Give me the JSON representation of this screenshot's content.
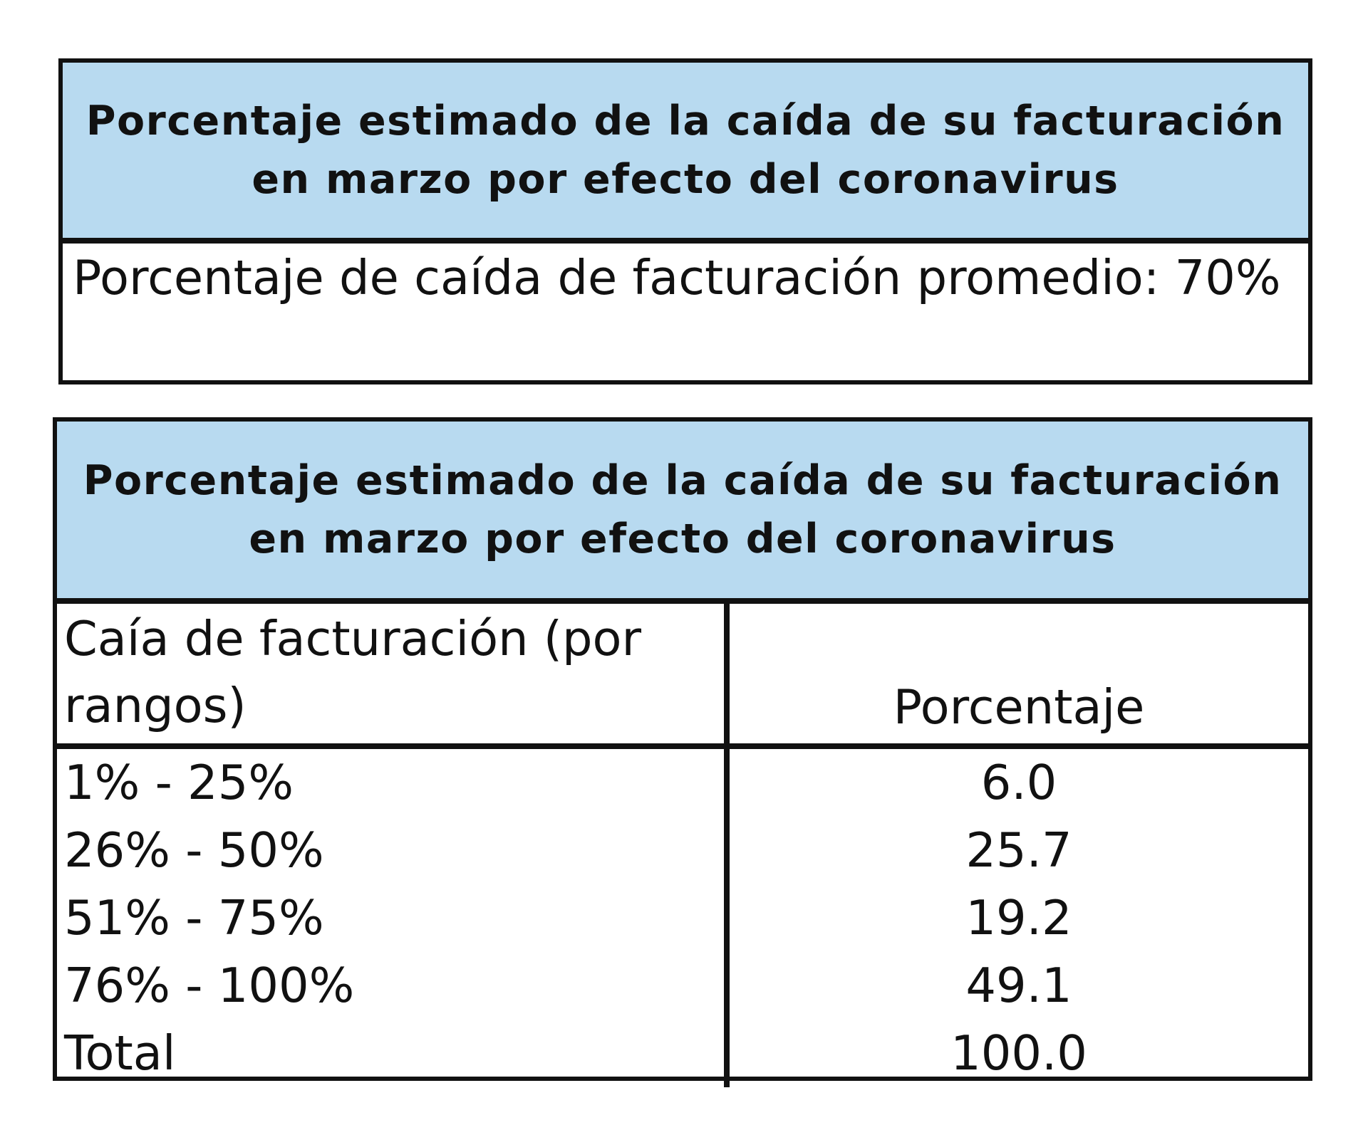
{
  "summary": {
    "title": "Porcentaje estimado de la caída de su facturación en marzo por efecto del coronavirus",
    "stat": "Porcentaje de caída de facturación promedio: 70%"
  },
  "breakdown": {
    "title": "Porcentaje estimado de la caída de su facturación en marzo por efecto del coronavirus",
    "col_range": "Caía de facturación (por rangos)",
    "col_percent": "Porcentaje",
    "rows": [
      {
        "range": "1% - 25%",
        "value": "6.0"
      },
      {
        "range": "26% - 50%",
        "value": "25.7"
      },
      {
        "range": "51% - 75%",
        "value": "19.2"
      },
      {
        "range": "76% - 100%",
        "value": "49.1"
      },
      {
        "range": "Total",
        "value": "100.0"
      }
    ]
  },
  "colors": {
    "header_bg": "#b8daf0",
    "border": "#111111"
  }
}
